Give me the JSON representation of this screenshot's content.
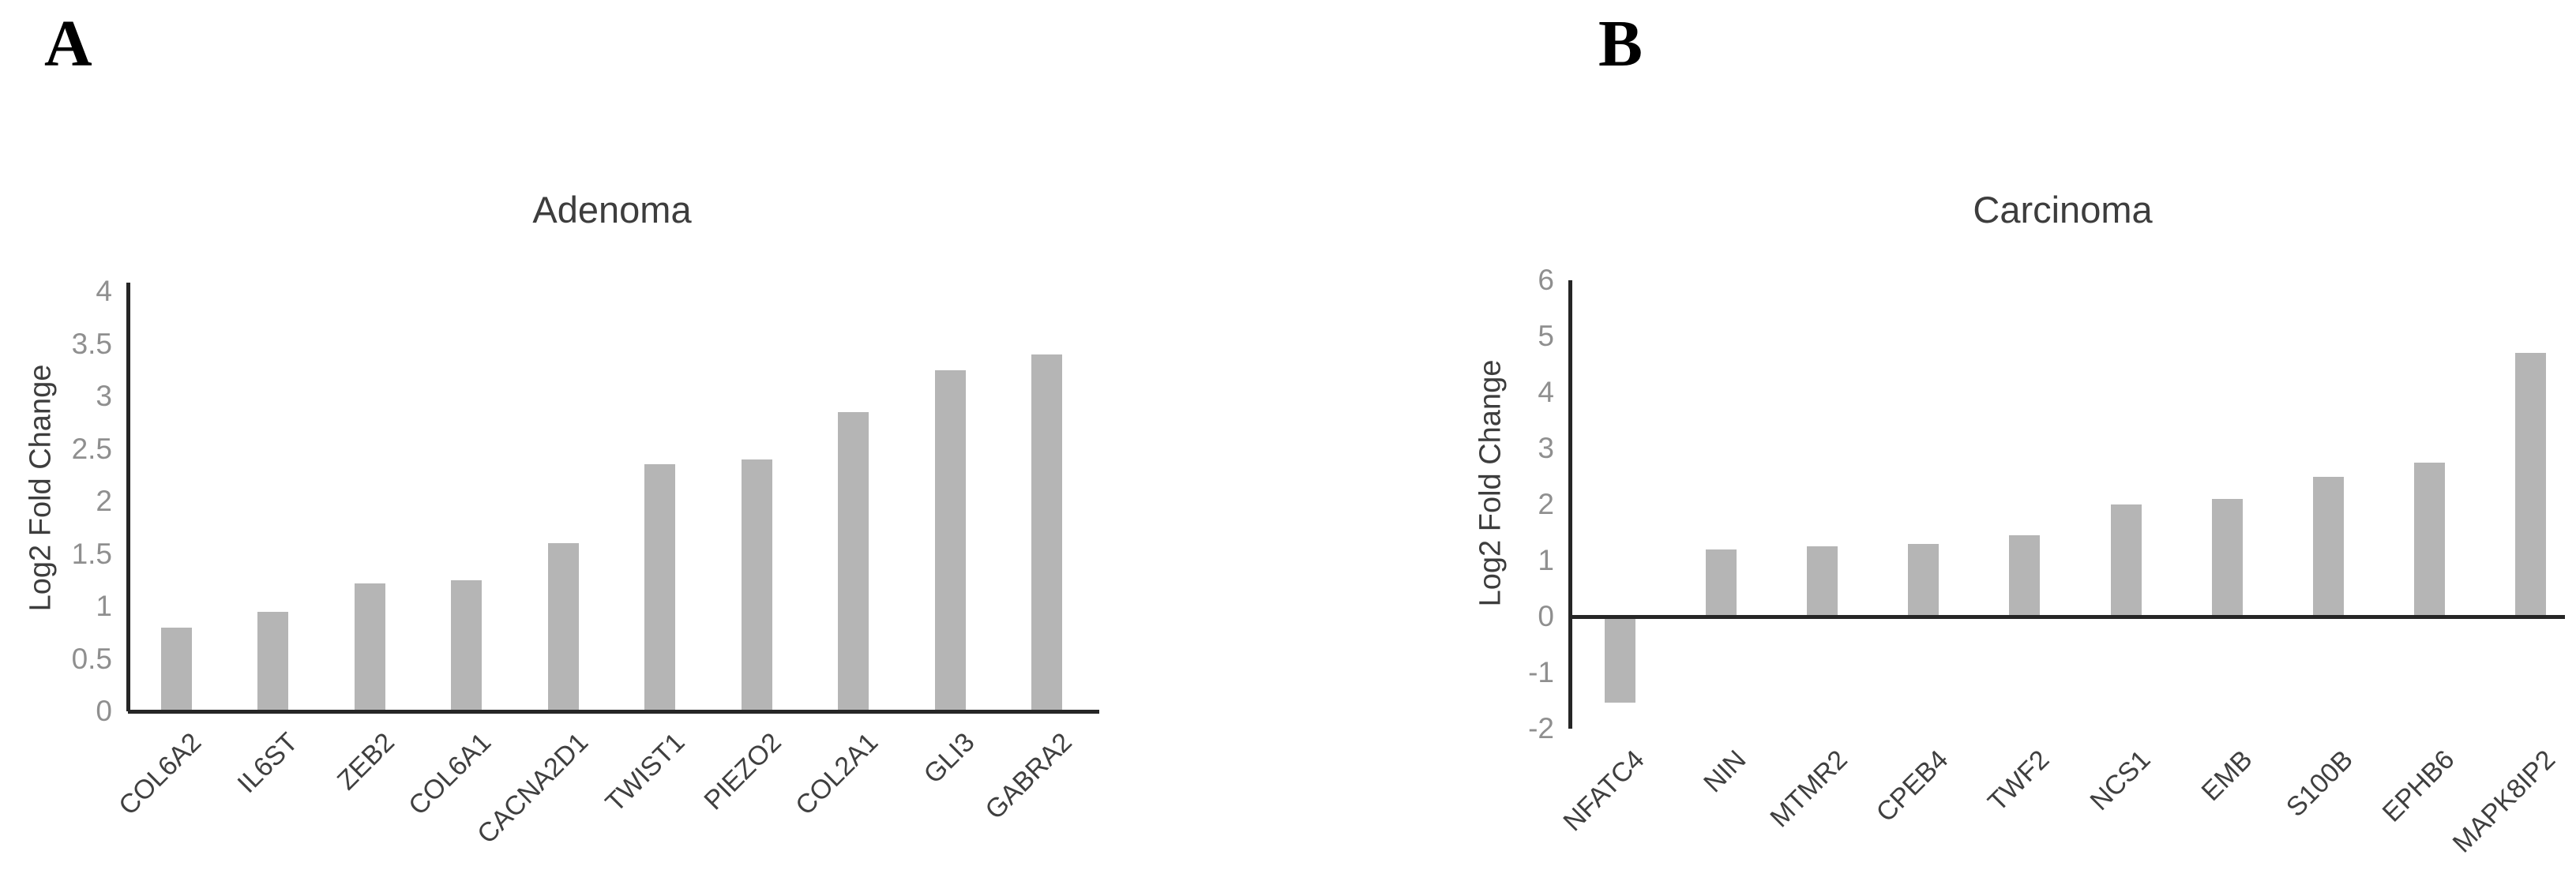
{
  "figure": {
    "background": "#ffffff",
    "bar_color": "#b5b5b5",
    "axis_color": "#262626",
    "tick_label_color": "#8f8f8f",
    "text_color": "#3d3d3d"
  },
  "panels": [
    {
      "letter": "A"
    },
    {
      "letter": "B"
    }
  ],
  "chart_data": [
    {
      "id": "adenoma",
      "type": "bar",
      "title": "Adenoma",
      "xlabel": "",
      "ylabel": "Log2 Fold Change",
      "categories": [
        "COL6A2",
        "IL6ST",
        "ZEB2",
        "COL6A1",
        "CACNA2D1",
        "TWIST1",
        "PIEZO2",
        "COL2A1",
        "GLI3",
        "GABRA2"
      ],
      "values": [
        0.8,
        0.95,
        1.22,
        1.25,
        1.6,
        2.35,
        2.4,
        2.85,
        3.25,
        3.4
      ],
      "ylim": [
        0,
        4
      ],
      "ytick_step": 0.5,
      "grid": false,
      "legend": "none",
      "bar_color": "#b5b5b5"
    },
    {
      "id": "carcinoma",
      "type": "bar",
      "title": "Carcinoma",
      "xlabel": "",
      "ylabel": "Log2 Fold Change",
      "categories": [
        "NFATC4",
        "NIN",
        "MTMR2",
        "CPEB4",
        "TWF2",
        "NCS1",
        "EMB",
        "S100B",
        "EPHB6",
        "MAPK8IP2"
      ],
      "values": [
        -1.5,
        1.2,
        1.25,
        1.3,
        1.45,
        2.0,
        2.1,
        2.5,
        2.75,
        4.7
      ],
      "ylim": [
        -2,
        6
      ],
      "ytick_step": 1,
      "grid": false,
      "legend": "none",
      "bar_color": "#b5b5b5"
    }
  ]
}
